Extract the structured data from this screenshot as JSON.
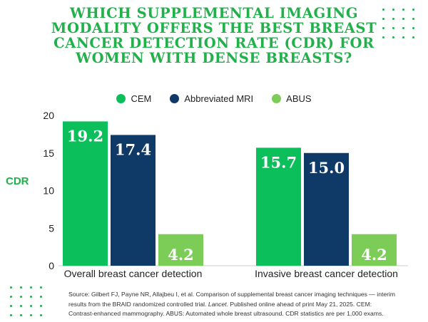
{
  "title": "WHICH SUPPLEMENTAL IMAGING MODALITY OFFERS THE BEST BREAST CANCER DETECTION RATE (CDR) FOR WOMEN WITH DENSE BREASTS?",
  "colors": {
    "accent": "#22b04b",
    "CEM": "#0bbf5b",
    "Abbreviated MRI": "#0f3a68",
    "ABUS": "#7ccd57"
  },
  "chart_data": {
    "type": "bar",
    "ylabel": "CDR",
    "xlabel": "",
    "ylim": [
      0,
      20
    ],
    "yticks": [
      0,
      5,
      10,
      15,
      20
    ],
    "categories": [
      "Overall breast cancer detection",
      "Invasive breast cancer detection"
    ],
    "series": [
      {
        "name": "CEM",
        "values": [
          19.2,
          15.7
        ],
        "labels": [
          "19.2",
          "15.7"
        ]
      },
      {
        "name": "Abbreviated MRI",
        "values": [
          17.4,
          15.0
        ],
        "labels": [
          "17.4",
          "15.0"
        ]
      },
      {
        "name": "ABUS",
        "values": [
          4.2,
          4.2
        ],
        "labels": [
          "4.2",
          "4.2"
        ]
      }
    ],
    "legend_position": "top",
    "grid": false
  },
  "source": {
    "part1": "Source:  Gilbert FJ, Payne NR, Allajbeu I, et al. Comparison of supplemental breast cancer imaging techniques — interim results from the BRAID randomized controlled trial.",
    "journal": "Lancet",
    "part2": ". Published online ahead of print May 21, 2025.  CEM: Contrast-enhanced mammography. ABUS: Automated whole breast ultrasound. CDR statistics are per 1,000 exams."
  }
}
